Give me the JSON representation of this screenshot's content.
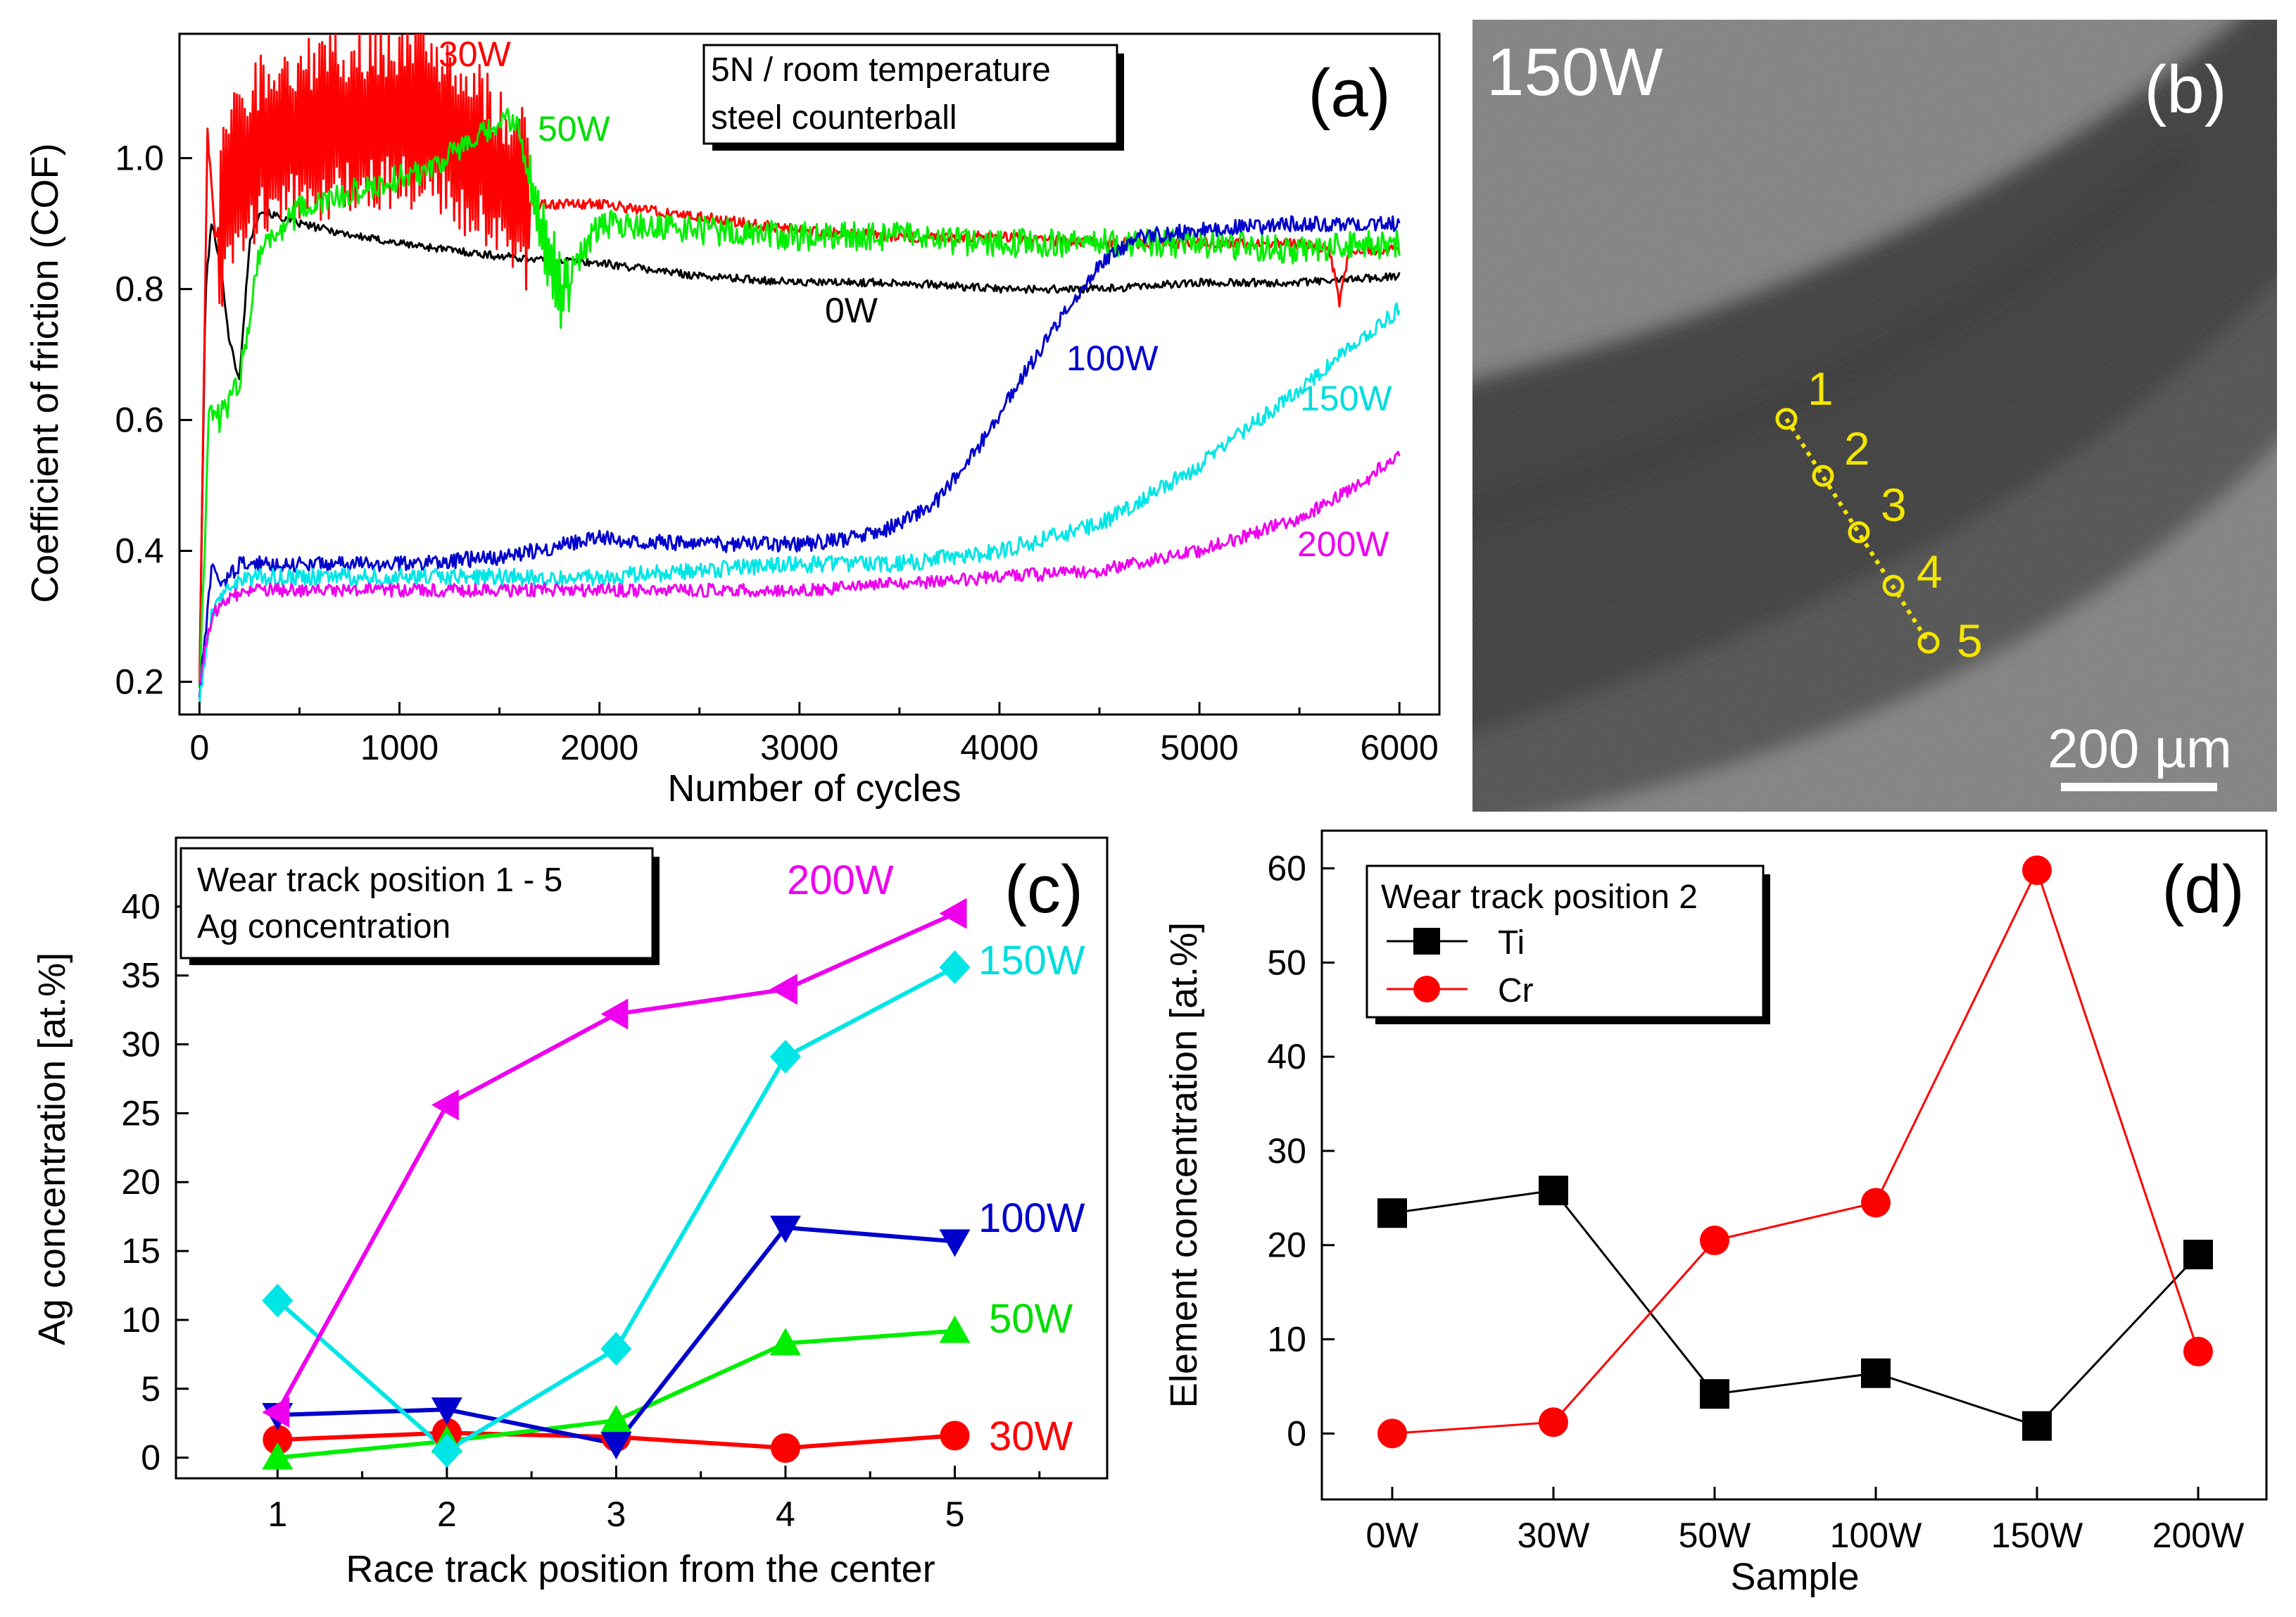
{
  "chart_data": [
    {
      "panel": "(a)",
      "type": "line",
      "xlabel": "Number of cycles",
      "ylabel": "Coefficient of friction (COF)",
      "xlim": [
        -100,
        6200
      ],
      "ylim": [
        0.15,
        1.19
      ],
      "xticks": [
        0,
        1000,
        2000,
        3000,
        4000,
        5000,
        6000
      ],
      "yticks": [
        0.2,
        0.4,
        0.6,
        0.8,
        1.0
      ],
      "ytick_labels": [
        "0.2",
        "0.4",
        "0.6",
        "0.8",
        "1.0"
      ],
      "legend": [
        "5N / room temperature",
        "steel counterball"
      ],
      "series": [
        {
          "name": "0W",
          "label": "0W",
          "color": "#000000",
          "noise": 0.006,
          "noise2": 0,
          "x": [
            0,
            30,
            60,
            100,
            150,
            200,
            250,
            300,
            500,
            800,
            1000,
            1500,
            2000,
            2500,
            3000,
            3500,
            4000,
            4500,
            5000,
            5500,
            6000
          ],
          "y": [
            0.2,
            0.8,
            0.9,
            0.85,
            0.72,
            0.66,
            0.87,
            0.92,
            0.9,
            0.88,
            0.87,
            0.85,
            0.84,
            0.82,
            0.81,
            0.81,
            0.8,
            0.8,
            0.81,
            0.81,
            0.82
          ]
        },
        {
          "name": "30W",
          "label": "30W",
          "color": "#ff0000",
          "noise": 0.008,
          "noise2": 0.14,
          "osc": [
            100,
            1650
          ],
          "x": [
            0,
            40,
            80,
            150,
            300,
            600,
            900,
            1150,
            1400,
            1650,
            1700,
            2000,
            2500,
            3000,
            3500,
            4000,
            4500,
            5000,
            5500,
            5650,
            5700,
            5750,
            6000
          ],
          "y": [
            0.2,
            1.04,
            0.88,
            0.95,
            1.02,
            1.05,
            1.06,
            1.07,
            1.0,
            0.93,
            0.93,
            0.93,
            0.91,
            0.89,
            0.88,
            0.88,
            0.87,
            0.87,
            0.87,
            0.86,
            0.78,
            0.86,
            0.86
          ]
        },
        {
          "name": "50W",
          "label": "50W",
          "color": "#00ee00",
          "noise": 0.022,
          "noise2": 0.05,
          "osc": [
            1650,
            1850
          ],
          "x": [
            0,
            50,
            100,
            200,
            300,
            500,
            800,
            1100,
            1400,
            1550,
            1600,
            1700,
            1800,
            2000,
            2500,
            3000,
            3500,
            4000,
            4500,
            5000,
            5500,
            6000
          ],
          "y": [
            0.2,
            0.62,
            0.6,
            0.66,
            0.86,
            0.92,
            0.95,
            0.98,
            1.03,
            1.06,
            1.04,
            0.9,
            0.8,
            0.9,
            0.89,
            0.88,
            0.88,
            0.87,
            0.87,
            0.87,
            0.86,
            0.87
          ]
        },
        {
          "name": "100W",
          "label": "100W",
          "color": "#0000cc",
          "noise": 0.012,
          "noise2": 0,
          "x": [
            0,
            60,
            120,
            200,
            500,
            1000,
            1500,
            2000,
            2500,
            3000,
            3300,
            3500,
            3700,
            3900,
            4100,
            4300,
            4500,
            4700,
            5000,
            5500,
            5700,
            6000
          ],
          "y": [
            0.18,
            0.37,
            0.35,
            0.38,
            0.38,
            0.38,
            0.39,
            0.42,
            0.41,
            0.41,
            0.42,
            0.44,
            0.48,
            0.56,
            0.66,
            0.75,
            0.84,
            0.88,
            0.89,
            0.9,
            0.9,
            0.9
          ]
        },
        {
          "name": "150W",
          "label": "150W",
          "color": "#00e5e5",
          "noise": 0.013,
          "noise2": 0,
          "x": [
            0,
            60,
            150,
            300,
            1000,
            2000,
            3000,
            3500,
            4000,
            4500,
            5000,
            5300,
            5600,
            5800,
            6000
          ],
          "y": [
            0.17,
            0.3,
            0.35,
            0.36,
            0.36,
            0.36,
            0.38,
            0.38,
            0.4,
            0.44,
            0.53,
            0.6,
            0.67,
            0.72,
            0.77
          ]
        },
        {
          "name": "200W",
          "label": "200W",
          "color": "#ee00ee",
          "noise": 0.01,
          "noise2": 0,
          "x": [
            0,
            60,
            150,
            300,
            1000,
            2000,
            3000,
            3500,
            4000,
            4500,
            5000,
            5500,
            5800,
            6000
          ],
          "y": [
            0.2,
            0.3,
            0.33,
            0.34,
            0.34,
            0.34,
            0.34,
            0.35,
            0.36,
            0.37,
            0.4,
            0.45,
            0.5,
            0.55
          ]
        }
      ]
    },
    {
      "panel": "(c)",
      "type": "line",
      "xlabel": "Race track position from the center",
      "ylabel": "Ag concentration [at.%]",
      "xlim": [
        0.4,
        5.9
      ],
      "ylim": [
        -1.5,
        45
      ],
      "xticks": [
        1,
        2,
        3,
        4,
        5
      ],
      "yticks": [
        0,
        5,
        10,
        15,
        20,
        25,
        30,
        35,
        40
      ],
      "legend": [
        "Wear track position 1 - 5",
        "Ag concentration"
      ],
      "series": [
        {
          "name": "200W",
          "color": "#ee00ee",
          "marker": "triangle-left",
          "x": [
            1,
            2,
            3,
            4,
            5
          ],
          "y": [
            3.3,
            25.6,
            32.2,
            34.0,
            39.5
          ]
        },
        {
          "name": "150W",
          "color": "#00e5e5",
          "marker": "diamond",
          "x": [
            1,
            2,
            3,
            4,
            5
          ],
          "y": [
            11.4,
            0.5,
            7.9,
            29.1,
            35.6
          ]
        },
        {
          "name": "100W",
          "color": "#0000cc",
          "marker": "triangle-down",
          "x": [
            1,
            2,
            3,
            4,
            5
          ],
          "y": [
            3.1,
            3.5,
            1.0,
            16.7,
            15.7
          ]
        },
        {
          "name": "50W",
          "color": "#00ee00",
          "marker": "triangle-up",
          "x": [
            1,
            2,
            3,
            4,
            5
          ],
          "y": [
            0.0,
            1.2,
            2.7,
            8.3,
            9.2
          ]
        },
        {
          "name": "30W",
          "color": "#ff0000",
          "marker": "circle",
          "x": [
            1,
            2,
            3,
            4,
            5
          ],
          "y": [
            1.3,
            1.8,
            1.5,
            0.7,
            1.6
          ]
        }
      ]
    },
    {
      "panel": "(d)",
      "type": "line",
      "xlabel": "Sample",
      "ylabel": "Element concentration [at.%]",
      "categories": [
        "0W",
        "30W",
        "50W",
        "100W",
        "150W",
        "200W"
      ],
      "ylim": [
        -7,
        64
      ],
      "yticks": [
        0,
        10,
        20,
        30,
        40,
        50,
        60
      ],
      "legend_title": "Wear track position 2",
      "series": [
        {
          "name": "Ti",
          "color": "#000000",
          "marker": "square",
          "values": [
            23.4,
            25.8,
            4.2,
            6.4,
            0.8,
            19.0
          ]
        },
        {
          "name": "Cr",
          "color": "#ff0000",
          "marker": "circle",
          "values": [
            0.0,
            1.2,
            20.5,
            24.5,
            59.8,
            8.7
          ]
        }
      ]
    }
  ],
  "panel_labels": {
    "a": "(a)",
    "b": "(b)",
    "c": "(c)",
    "d": "(d)"
  },
  "micrograph": {
    "sample_label": "150W",
    "scale_bar": "200 µm",
    "points": [
      "1",
      "2",
      "3",
      "4",
      "5"
    ],
    "point_color": "#f5e600"
  }
}
